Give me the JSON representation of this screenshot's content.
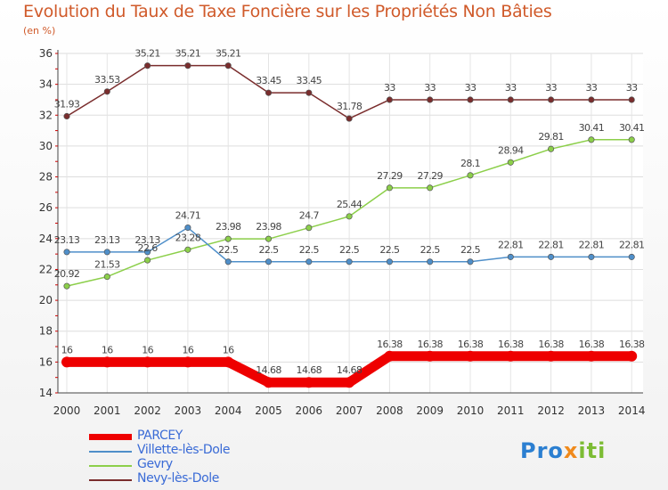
{
  "header": {
    "title": "Evolution du Taux de Taxe Foncière sur les Propriétés Non Bâties",
    "subtitle": "(en %)"
  },
  "logo": {
    "part1": "Pro",
    "part2": "x",
    "part3": "iti"
  },
  "chart_data": {
    "type": "line",
    "title": "Evolution du Taux de Taxe Foncière sur les Propriétés Non Bâties",
    "ylabel": "(en %)",
    "xlabel": "",
    "categories": [
      "2000",
      "2001",
      "2002",
      "2003",
      "2004",
      "2005",
      "2006",
      "2007",
      "2008",
      "2009",
      "2010",
      "2011",
      "2012",
      "2013",
      "2014"
    ],
    "ylim": [
      14,
      36
    ],
    "yticks": [
      14,
      16,
      18,
      20,
      22,
      24,
      26,
      28,
      30,
      32,
      34,
      36
    ],
    "grid": true,
    "legend_position": "bottom-left",
    "series": [
      {
        "name": "PARCEY",
        "color": "#ee0000",
        "thick": true,
        "values": [
          16,
          16,
          16,
          16,
          16,
          14.68,
          14.68,
          14.68,
          16.38,
          16.38,
          16.38,
          16.38,
          16.38,
          16.38,
          16.38
        ],
        "labels": [
          "16",
          "16",
          "16",
          "16",
          "16",
          "14.68",
          "14.68",
          "14.68",
          "16.38",
          "16.38",
          "16.38",
          "16.38",
          "16.38",
          "16.38",
          "16.38"
        ]
      },
      {
        "name": "Villette-lès-Dole",
        "color": "#4f8fc9",
        "thick": false,
        "values": [
          23.13,
          23.13,
          23.13,
          24.71,
          22.5,
          22.5,
          22.5,
          22.5,
          22.5,
          22.5,
          22.5,
          22.81,
          22.81,
          22.81,
          22.81
        ],
        "labels": [
          "23.13",
          "23.13",
          "23.13",
          "24.71",
          "22.5",
          "22.5",
          "22.5",
          "22.5",
          "22.5",
          "22.5",
          "22.5",
          "22.81",
          "22.81",
          "22.81",
          "22.81"
        ]
      },
      {
        "name": "Gevry",
        "color": "#8ccf4a",
        "thick": false,
        "values": [
          20.92,
          21.53,
          22.6,
          23.28,
          23.98,
          23.98,
          24.7,
          25.44,
          27.29,
          27.29,
          28.1,
          28.94,
          29.81,
          30.41,
          30.41
        ],
        "labels": [
          "20.92",
          "21.53",
          "22.6",
          "23.28",
          "23.98",
          "23.98",
          "24.7",
          "25.44",
          "27.29",
          "27.29",
          "28.1",
          "28.94",
          "29.81",
          "30.41",
          "30.41"
        ]
      },
      {
        "name": "Nevy-lès-Dole",
        "color": "#7a2d2d",
        "thick": false,
        "values": [
          31.93,
          33.53,
          35.21,
          35.21,
          35.21,
          33.45,
          33.45,
          31.78,
          33,
          33,
          33,
          33,
          33,
          33,
          33
        ],
        "labels": [
          "31.93",
          "33.53",
          "35.21",
          "35.21",
          "35.21",
          "33.45",
          "33.45",
          "31.78",
          "33",
          "33",
          "33",
          "33",
          "33",
          "33",
          "33"
        ]
      }
    ]
  }
}
